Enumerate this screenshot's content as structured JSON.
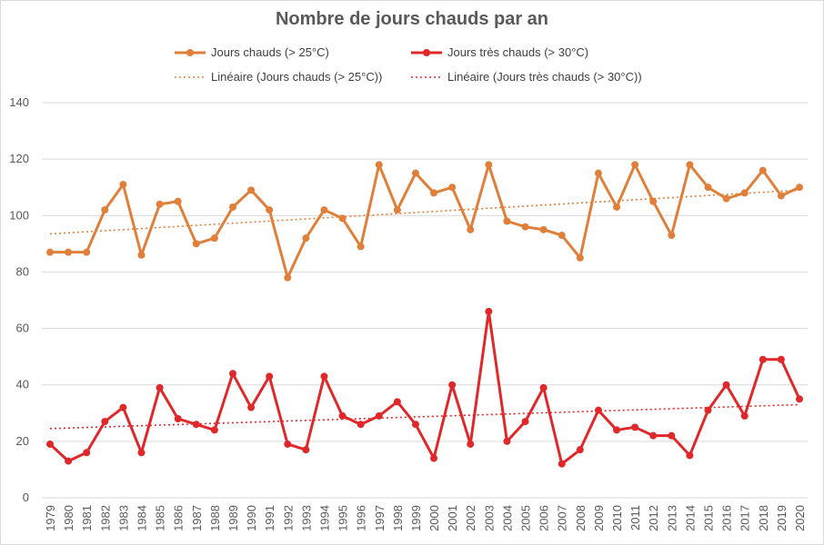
{
  "chart_data": {
    "type": "line",
    "title": "Nombre de jours chauds par an",
    "xlabel": "",
    "ylabel": "",
    "ylim": [
      0,
      140
    ],
    "yticks": [
      0,
      20,
      40,
      60,
      80,
      100,
      120,
      140
    ],
    "grid": true,
    "legend_position": "top",
    "categories": [
      "1979",
      "1980",
      "1981",
      "1982",
      "1983",
      "1984",
      "1985",
      "1986",
      "1987",
      "1988",
      "1989",
      "1990",
      "1991",
      "1992",
      "1993",
      "1994",
      "1995",
      "1996",
      "1997",
      "1998",
      "1999",
      "2000",
      "2001",
      "2002",
      "2003",
      "2004",
      "2005",
      "2006",
      "2007",
      "2008",
      "2009",
      "2010",
      "2011",
      "2012",
      "2013",
      "2014",
      "2015",
      "2016",
      "2017",
      "2018",
      "2019",
      "2020"
    ],
    "series": [
      {
        "name": "Jours chauds (> 25°C)",
        "color": "#e07f3a",
        "values": [
          87,
          87,
          87,
          102,
          111,
          86,
          104,
          105,
          90,
          92,
          103,
          109,
          102,
          78,
          92,
          102,
          99,
          89,
          118,
          102,
          115,
          108,
          110,
          95,
          118,
          98,
          96,
          95,
          93,
          85,
          115,
          103,
          118,
          105,
          93,
          118,
          110,
          106,
          108,
          116,
          107,
          110
        ],
        "trend": {
          "name": "Linéaire (Jours chauds (> 25°C))",
          "start": 93.5,
          "end": 109.0
        }
      },
      {
        "name": "Jours très chauds (> 30°C)",
        "color": "#e0282a",
        "values": [
          19,
          13,
          16,
          27,
          32,
          16,
          39,
          28,
          26,
          24,
          44,
          32,
          43,
          19,
          17,
          43,
          29,
          26,
          29,
          34,
          26,
          14,
          40,
          19,
          66,
          20,
          27,
          39,
          12,
          17,
          31,
          24,
          25,
          22,
          22,
          15,
          31,
          40,
          29,
          49,
          49,
          35
        ],
        "trend": {
          "name": "Linéaire (Jours très chauds (> 30°C))",
          "start": 24.5,
          "end": 33.0
        }
      }
    ]
  }
}
